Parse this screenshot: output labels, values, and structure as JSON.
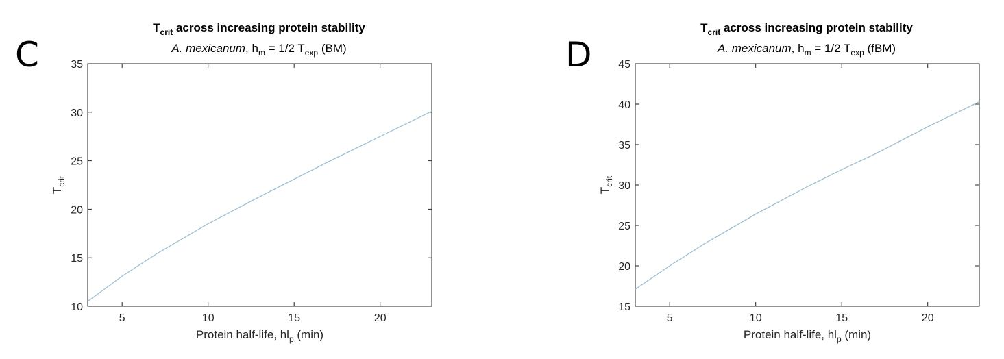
{
  "panels": [
    {
      "letter": "C"
    },
    {
      "letter": "D"
    }
  ],
  "chart_data": [
    {
      "type": "line",
      "title": "T",
      "title_sub": "crit",
      "title_rest": " across increasing protein stability",
      "subtitle": {
        "species": "A. mexicanum",
        "h": ", h",
        "h_sub": "m",
        "mid": " = 1/2 T",
        "t_sub": "exp",
        "tail": " (BM)"
      },
      "xlabel": {
        "main": "Protein half-life, hl",
        "sub": "p",
        "tail": " (min)"
      },
      "ylabel": {
        "main": "T",
        "sub": "crit"
      },
      "xlim": [
        3,
        23
      ],
      "ylim": [
        10,
        35
      ],
      "xticks": [
        5,
        10,
        15,
        20
      ],
      "yticks": [
        10,
        15,
        20,
        25,
        30,
        35
      ],
      "grid": false,
      "line_color": "#9fbfd0",
      "series": [
        {
          "x": [
            3,
            5,
            7,
            10,
            13,
            15,
            17,
            20,
            23
          ],
          "values": [
            10.5,
            13.1,
            15.4,
            18.5,
            21.3,
            23.1,
            24.9,
            27.5,
            30.1
          ]
        }
      ]
    },
    {
      "type": "line",
      "title": "T",
      "title_sub": "crit",
      "title_rest": " across increasing protein stability",
      "subtitle": {
        "species": "A. mexicanum",
        "h": ", h",
        "h_sub": "m",
        "mid": " = 1/2 T",
        "t_sub": "exp",
        "tail": " (fBM)"
      },
      "xlabel": {
        "main": "Protein half-life, hl",
        "sub": "p",
        "tail": " (min)"
      },
      "ylabel": {
        "main": "T",
        "sub": "crit"
      },
      "xlim": [
        3,
        23
      ],
      "ylim": [
        15,
        45
      ],
      "xticks": [
        5,
        10,
        15,
        20
      ],
      "yticks": [
        15,
        20,
        25,
        30,
        35,
        40,
        45
      ],
      "grid": false,
      "line_color": "#9fbfd0",
      "series": [
        {
          "x": [
            3,
            5,
            7,
            10,
            13,
            15,
            17,
            20,
            23
          ],
          "values": [
            17.1,
            20.0,
            22.7,
            26.4,
            29.8,
            31.9,
            33.9,
            37.2,
            40.3
          ]
        }
      ]
    }
  ]
}
